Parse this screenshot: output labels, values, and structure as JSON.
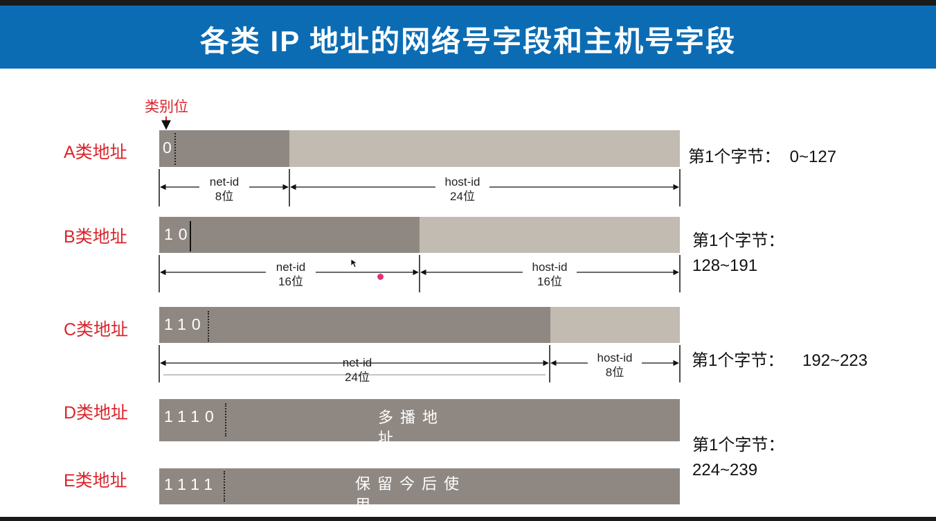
{
  "title": "各类 IP 地址的网络号字段和主机号字段",
  "class_bit_label": "类别位",
  "classes": [
    {
      "label": "A类地址",
      "bits": "0",
      "byte_text": "第1个字节：  0~127",
      "net_label": "net-id",
      "net_bits": "8位",
      "host_label": "host-id",
      "host_bits": "24位"
    },
    {
      "label": "B类地址",
      "bits": "10",
      "byte_text": "第1个字节：\n128~191",
      "net_label": "net-id",
      "net_bits": "16位",
      "host_label": "host-id",
      "host_bits": "16位"
    },
    {
      "label": "C类地址",
      "bits": "110",
      "byte_text": "第1个字节：    192~223",
      "net_label": "net-id",
      "net_bits": "24位",
      "host_label": "host-id",
      "host_bits": "8位"
    },
    {
      "label": "D类地址",
      "bits": "1110",
      "center": "多播地址"
    },
    {
      "label": "E类地址",
      "bits": "1111",
      "center": "保留今后使用"
    }
  ],
  "de_byte_text": "第1个字节：\n224~239",
  "colors": {
    "banner": "#0b6cb4",
    "net": "#8f8882",
    "host": "#c1bbb1",
    "label": "#d9242b"
  }
}
